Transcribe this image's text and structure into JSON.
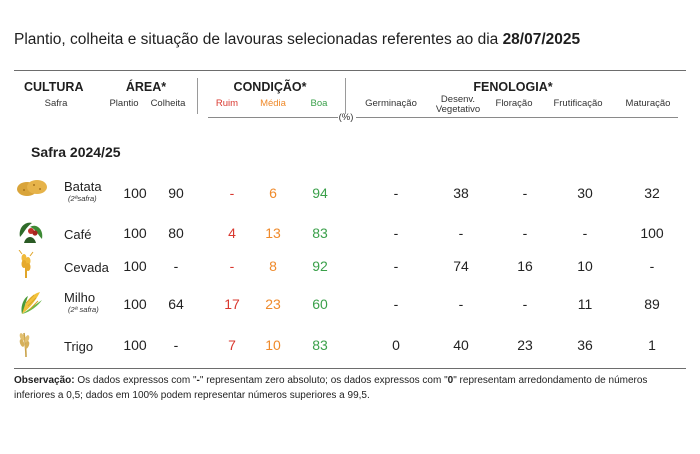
{
  "title": {
    "text": "Plantio, colheita e situação de lavouras selecionadas referentes ao dia ",
    "date": "28/07/2025"
  },
  "headers": {
    "cultura": "CULTURA",
    "safra": "Safra",
    "area": "ÁREA*",
    "plantio": "Plantio",
    "colheita": "Colheita",
    "condicao": "CONDIÇÃO*",
    "ruim": "Ruim",
    "media": "Média",
    "boa": "Boa",
    "fenologia": "FENOLOGIA*",
    "germinacao": "Germinação",
    "desenv_line1": "Desenv.",
    "desenv_line2": "Vegetativo",
    "floracao": "Floração",
    "frutificacao": "Frutificação",
    "maturacao": "Maturação",
    "unit": "(%)"
  },
  "section_label": "Safra 2024/25",
  "colors": {
    "ruim": "#d9382f",
    "media": "#ef8a2b",
    "boa": "#3aa04a"
  },
  "rows": [
    {
      "name": "Batata",
      "sub": "(2ªsafra)",
      "icon": "potato-icon",
      "plantio": "100",
      "colheita": "90",
      "ruim": "-",
      "media": "6",
      "boa": "94",
      "germinacao": "-",
      "desenv": "38",
      "floracao": "-",
      "frutificacao": "30",
      "maturacao": "32"
    },
    {
      "name": "Café",
      "sub": "",
      "icon": "coffee-icon",
      "plantio": "100",
      "colheita": "80",
      "ruim": "4",
      "media": "13",
      "boa": "83",
      "germinacao": "-",
      "desenv": "-",
      "floracao": "-",
      "frutificacao": "-",
      "maturacao": "100"
    },
    {
      "name": "Cevada",
      "sub": "",
      "icon": "barley-icon",
      "plantio": "100",
      "colheita": "-",
      "ruim": "-",
      "media": "8",
      "boa": "92",
      "germinacao": "-",
      "desenv": "74",
      "floracao": "16",
      "frutificacao": "10",
      "maturacao": "-"
    },
    {
      "name": "Milho",
      "sub": "(2ª safra)",
      "icon": "corn-icon",
      "plantio": "100",
      "colheita": "64",
      "ruim": "17",
      "media": "23",
      "boa": "60",
      "germinacao": "-",
      "desenv": "-",
      "floracao": "-",
      "frutificacao": "11",
      "maturacao": "89"
    },
    {
      "name": "Trigo",
      "sub": "",
      "icon": "wheat-icon",
      "plantio": "100",
      "colheita": "-",
      "ruim": "7",
      "media": "10",
      "boa": "83",
      "germinacao": "0",
      "desenv": "40",
      "floracao": "23",
      "frutificacao": "36",
      "maturacao": "1"
    }
  ],
  "observation": {
    "label": "Observação:",
    "part1": " Os dados expressos com \"",
    "dash": "-",
    "part2": "\" representam zero absoluto; os dados expressos com \"",
    "zero": "0",
    "part3": "\" representam arredondamento de números inferiores a 0,5; dados em 100% podem representar números superiores a 99,5."
  }
}
